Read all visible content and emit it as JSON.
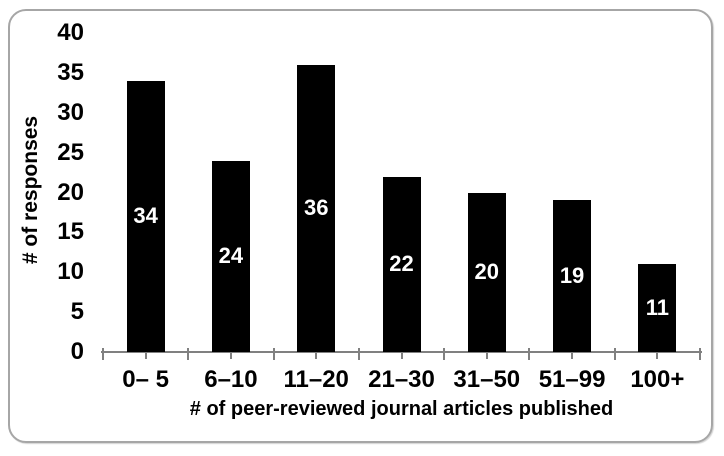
{
  "chart_data": {
    "type": "bar",
    "categories": [
      "0– 5",
      "6–10",
      "11–20",
      "21–30",
      "31–50",
      "51–99",
      "100+"
    ],
    "values": [
      34,
      24,
      36,
      22,
      20,
      19,
      11
    ],
    "title": "",
    "xlabel": "# of peer-reviewed journal articles published",
    "ylabel": "# of responses",
    "yticks": [
      0,
      5,
      10,
      15,
      20,
      25,
      30,
      35,
      40
    ],
    "ylim": [
      0,
      40
    ],
    "grid": false,
    "legend": "none",
    "bar_color": "#000000",
    "bar_label_color": "#ffffff",
    "axis_color": "#808080",
    "text_color": "#000000",
    "frame_border_color": "#a6a6a6",
    "background_color": "#ffffff"
  }
}
